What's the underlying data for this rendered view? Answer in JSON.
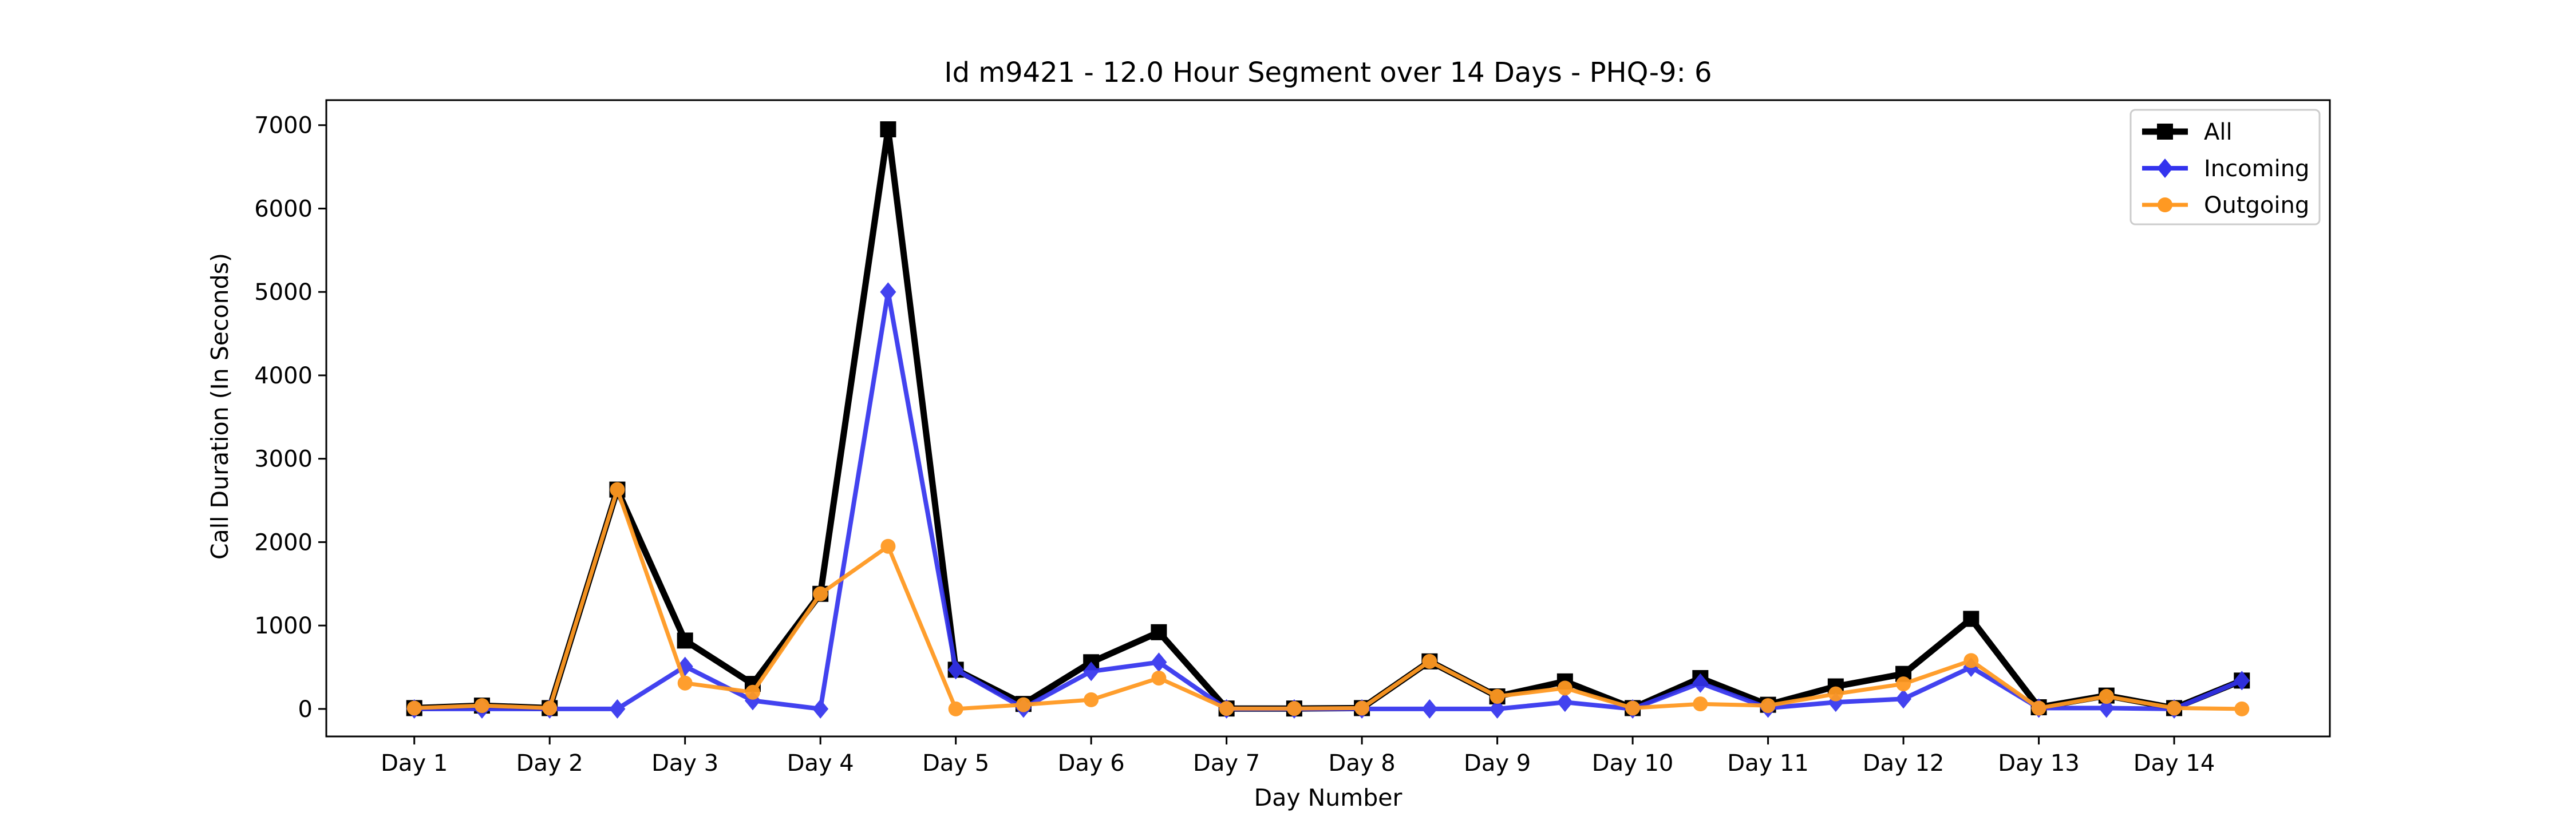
{
  "chart_data": {
    "type": "line",
    "title": "Id m9421 - 12.0 Hour Segment over 14 Days - PHQ-9: 6",
    "xlabel": "Day Number",
    "ylabel": "Call Duration (In Seconds)",
    "ylim": [
      -330,
      7300
    ],
    "yticks": [
      0,
      1000,
      2000,
      3000,
      4000,
      5000,
      6000,
      7000
    ],
    "xticks": [
      "Day 1",
      "Day 2",
      "Day 3",
      "Day 4",
      "Day 5",
      "Day 6",
      "Day 7",
      "Day 8",
      "Day 9",
      "Day 10",
      "Day 11",
      "Day 12",
      "Day 13",
      "Day 14"
    ],
    "x": [
      1,
      1.5,
      2,
      2.5,
      3,
      3.5,
      4,
      4.5,
      5,
      5.5,
      6,
      6.5,
      7,
      7.5,
      8,
      8.5,
      9,
      9.5,
      10,
      10.5,
      11,
      11.5,
      12,
      12.5,
      13,
      13.5,
      14,
      14.5
    ],
    "grid": false,
    "legend_position": "top-right",
    "series": [
      {
        "name": "All",
        "color": "#000000",
        "marker": "square",
        "values": [
          10,
          40,
          10,
          2630,
          820,
          300,
          1380,
          6950,
          470,
          60,
          560,
          920,
          5,
          5,
          10,
          570,
          150,
          330,
          10,
          370,
          50,
          270,
          420,
          1080,
          20,
          160,
          10,
          340
        ]
      },
      {
        "name": "Incoming",
        "color": "#3333ee",
        "marker": "diamond",
        "values": [
          0,
          0,
          0,
          0,
          510,
          100,
          0,
          5000,
          470,
          10,
          450,
          560,
          0,
          0,
          0,
          0,
          0,
          80,
          0,
          310,
          10,
          80,
          120,
          500,
          10,
          10,
          0,
          340
        ]
      },
      {
        "name": "Outgoing",
        "color": "#ff9922",
        "marker": "circle",
        "values": [
          10,
          40,
          10,
          2630,
          310,
          200,
          1380,
          1950,
          0,
          50,
          110,
          370,
          5,
          5,
          10,
          570,
          150,
          250,
          10,
          60,
          40,
          180,
          300,
          580,
          10,
          150,
          10,
          0
        ]
      }
    ]
  }
}
